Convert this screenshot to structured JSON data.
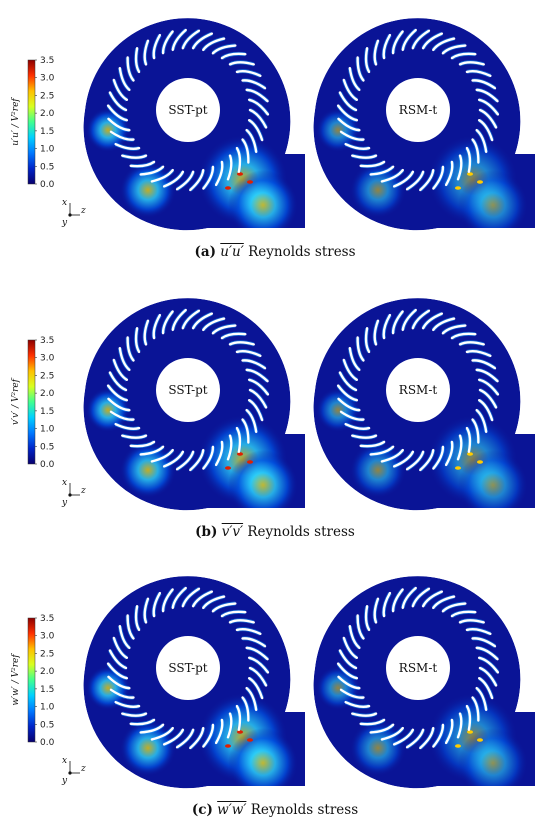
{
  "colorbar": {
    "ticks": [
      "3.5",
      "3.0",
      "2.5",
      "2.0",
      "1.5",
      "1.0",
      "0.5",
      "0.0"
    ],
    "colors": [
      "#08006e",
      "#0024c8",
      "#0078ff",
      "#00d0ff",
      "#40ff90",
      "#d8ff20",
      "#ffc000",
      "#ff3000",
      "#8c0000"
    ]
  },
  "panels": [
    {
      "id": "a",
      "letter": "(a)",
      "symbol": "u′u′",
      "caption_rest": " Reynolds stress",
      "cbar_label": "u′u′ / V²ref",
      "left_label": "SST-pt",
      "right_label": "RSM-t"
    },
    {
      "id": "b",
      "letter": "(b)",
      "symbol": "v′v′",
      "caption_rest": " Reynolds stress",
      "cbar_label": "v′v′ / V²ref",
      "left_label": "SST-pt",
      "right_label": "RSM-t"
    },
    {
      "id": "c",
      "letter": "(c)",
      "symbol": "w′w′",
      "caption_rest": " Reynolds stress",
      "cbar_label": "w′w′ / V²ref",
      "left_label": "SST-pt",
      "right_label": "RSM-t"
    }
  ],
  "axes_triad": {
    "x": "x",
    "y": "y",
    "z": "z"
  }
}
